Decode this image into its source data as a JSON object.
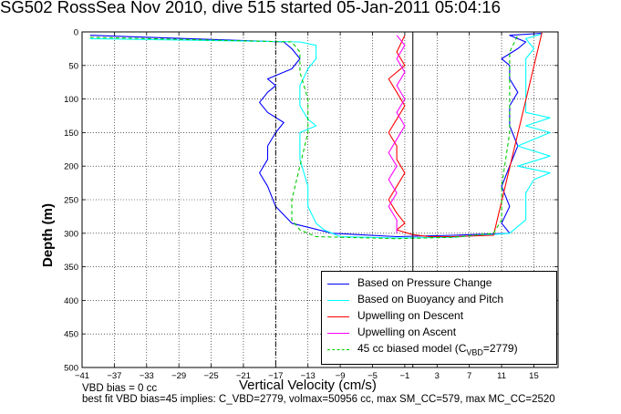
{
  "title": "SG502 RossSea Nov 2010, dive 515 started 05-Jan-2011 05:04:16",
  "notes": {
    "line1": "VBD bias = 0 cc",
    "line2": "best fit VBD bias=45 implies: C_VBD=2779, volmax=50956 cc, max SM_CC=579, max MC_CC=2520"
  },
  "legend": {
    "s1": "Based on Pressure Change",
    "s2": "Based on Buoyancy and Pitch",
    "s3": "Upwelling on Descent",
    "s4": "Upwelling on Ascent",
    "s5_main": "45 cc biased model (C",
    "s5_sub": "VBD",
    "s5_tail": "=2779)"
  },
  "colors": {
    "pressure": "#0000ff",
    "buoyancy": "#00ffff",
    "descent": "#ff0000",
    "ascent": "#ff00ff",
    "model": "#00cc00",
    "grid": "#000000"
  },
  "chart_data": {
    "type": "line",
    "title": "SG502 RossSea Nov 2010, dive 515 started 05-Jan-2011 05:04:16",
    "xlabel": "Vertical Velocity (cm/s)",
    "ylabel": "Depth (m)",
    "xlim": [
      -41,
      18
    ],
    "ylim": [
      500,
      0
    ],
    "y_reversed": true,
    "grid": true,
    "legend_position": "bottom-right",
    "xticks": [
      -41,
      -37,
      -33,
      -29,
      -25,
      -21,
      -17,
      -13,
      -9,
      -5,
      -1,
      3,
      7,
      11,
      15
    ],
    "yticks": [
      0,
      50,
      100,
      150,
      200,
      250,
      300,
      350,
      400,
      450,
      500
    ],
    "vlines": [
      -17,
      0,
      18
    ],
    "series": [
      {
        "name": "Based on Pressure Change",
        "style": "solid",
        "color": "#0000ff",
        "x": [
          -40,
          -16,
          -15,
          -14,
          -15,
          -18,
          -17,
          -18,
          -19,
          -18,
          -16,
          -17,
          -18,
          -18,
          -19,
          -18,
          -17,
          -15,
          -10,
          -2,
          5,
          12,
          11,
          12,
          11,
          12,
          13,
          12,
          12,
          13,
          12,
          12,
          11,
          13,
          14,
          12,
          16
        ],
        "y": [
          5,
          15,
          25,
          40,
          55,
          70,
          80,
          90,
          105,
          120,
          135,
          150,
          170,
          190,
          210,
          230,
          260,
          285,
          300,
          305,
          303,
          300,
          285,
          260,
          230,
          200,
          170,
          140,
          110,
          90,
          70,
          50,
          40,
          25,
          15,
          5,
          2
        ]
      },
      {
        "name": "Based on Buoyancy and Pitch",
        "style": "solid",
        "color": "#00ffff",
        "x": [
          -40,
          -14,
          -12,
          -12,
          -13,
          -14,
          -14,
          -13,
          -12,
          -14,
          -14,
          -13,
          -13,
          -12,
          -11,
          -9,
          -2,
          5,
          12,
          14,
          14,
          15,
          17,
          13,
          17,
          13,
          17,
          14,
          17,
          14,
          14,
          14,
          14,
          14,
          15,
          14,
          16
        ],
        "y": [
          10,
          15,
          20,
          40,
          55,
          80,
          110,
          130,
          140,
          150,
          190,
          230,
          260,
          285,
          295,
          305,
          307,
          306,
          300,
          280,
          240,
          220,
          210,
          200,
          185,
          170,
          150,
          140,
          128,
          120,
          100,
          80,
          60,
          40,
          25,
          10,
          3
        ]
      },
      {
        "name": "Upwelling on Descent",
        "style": "solid",
        "color": "#ff0000",
        "x": [
          -1,
          -2,
          -1,
          -3,
          -2,
          -1,
          -2,
          -3,
          -2,
          -2,
          -1,
          -2,
          -3,
          -2,
          -1,
          -2,
          0,
          2,
          5,
          10,
          16
        ],
        "y": [
          5,
          30,
          50,
          70,
          90,
          110,
          130,
          150,
          170,
          190,
          210,
          230,
          250,
          270,
          285,
          295,
          302,
          305,
          305,
          303,
          1
        ]
      },
      {
        "name": "Upwelling on Ascent",
        "style": "solid",
        "color": "#ff00ff",
        "x": [
          -2,
          -1,
          -2,
          -1,
          -2,
          -1,
          -2,
          -1,
          -2,
          -3,
          -2,
          -3,
          -2,
          -3,
          -2,
          -2
        ],
        "y": [
          5,
          20,
          40,
          60,
          80,
          100,
          120,
          140,
          160,
          180,
          200,
          220,
          240,
          260,
          280,
          300
        ]
      },
      {
        "name": "45 cc biased model (CVBD=2779)",
        "style": "dashed",
        "color": "#00cc00",
        "x": [
          -40,
          -15,
          -14,
          -14,
          -13,
          -13,
          -14,
          -15,
          -15,
          -14,
          -13,
          -12,
          -2,
          5,
          10,
          11,
          11,
          12,
          12,
          12,
          13
        ],
        "y": [
          8,
          15,
          30,
          60,
          100,
          150,
          200,
          250,
          280,
          295,
          300,
          305,
          308,
          306,
          300,
          280,
          230,
          150,
          80,
          30,
          5
        ]
      }
    ]
  }
}
